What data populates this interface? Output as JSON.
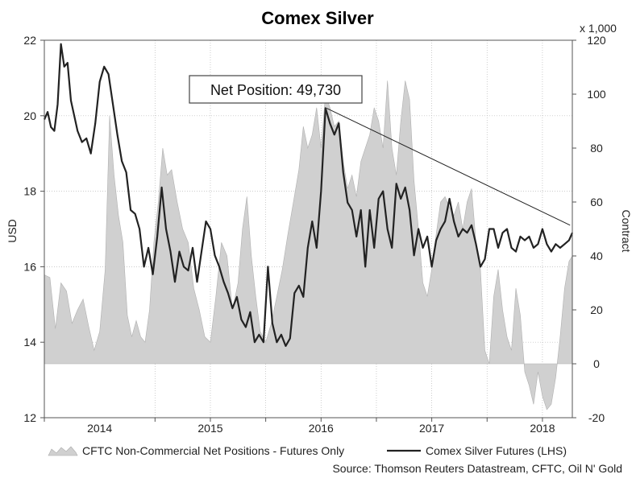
{
  "chart_data": {
    "type": "line",
    "title": "Comex Silver",
    "left_axis": {
      "label": "USD",
      "min": 12,
      "max": 22,
      "ticks": [
        12,
        14,
        16,
        18,
        20,
        22
      ]
    },
    "right_axis": {
      "label": "Contract",
      "unit_note": "x 1,000",
      "min": -20,
      "max": 120,
      "ticks": [
        -20,
        0,
        20,
        40,
        60,
        80,
        100,
        120
      ]
    },
    "x_axis": {
      "min": 2013.5,
      "max": 2018.27,
      "tick_labels": [
        {
          "label": "2014",
          "x": 2014.0
        },
        {
          "label": "2015",
          "x": 2015.0
        },
        {
          "label": "2016",
          "x": 2016.0
        },
        {
          "label": "2017",
          "x": 2017.0
        },
        {
          "label": "2018",
          "x": 2018.0
        }
      ],
      "year_boundaries": [
        2013.5,
        2014.5,
        2015.0,
        2015.5,
        2016.0,
        2016.5,
        2017.0,
        2017.5,
        2018.0
      ]
    },
    "series": [
      {
        "name": "CFTC Non-Commercial Net Positions - Futures Only",
        "type": "area",
        "axis": "right",
        "color": "#d0d0d0",
        "points": [
          [
            2013.5,
            33
          ],
          [
            2013.55,
            32
          ],
          [
            2013.6,
            13
          ],
          [
            2013.65,
            30
          ],
          [
            2013.7,
            27
          ],
          [
            2013.75,
            15
          ],
          [
            2013.8,
            20
          ],
          [
            2013.85,
            24
          ],
          [
            2013.9,
            14
          ],
          [
            2013.95,
            5
          ],
          [
            2014.0,
            12
          ],
          [
            2014.05,
            35
          ],
          [
            2014.09,
            92
          ],
          [
            2014.13,
            70
          ],
          [
            2014.17,
            55
          ],
          [
            2014.21,
            45
          ],
          [
            2014.25,
            18
          ],
          [
            2014.29,
            10
          ],
          [
            2014.33,
            16
          ],
          [
            2014.37,
            10
          ],
          [
            2014.41,
            8
          ],
          [
            2014.45,
            20
          ],
          [
            2014.49,
            45
          ],
          [
            2014.53,
            60
          ],
          [
            2014.57,
            80
          ],
          [
            2014.61,
            70
          ],
          [
            2014.65,
            72
          ],
          [
            2014.7,
            60
          ],
          [
            2014.75,
            50
          ],
          [
            2014.8,
            45
          ],
          [
            2014.85,
            28
          ],
          [
            2014.9,
            20
          ],
          [
            2014.95,
            10
          ],
          [
            2015.0,
            8
          ],
          [
            2015.05,
            25
          ],
          [
            2015.1,
            45
          ],
          [
            2015.15,
            40
          ],
          [
            2015.2,
            20
          ],
          [
            2015.25,
            30
          ],
          [
            2015.29,
            50
          ],
          [
            2015.33,
            62
          ],
          [
            2015.37,
            40
          ],
          [
            2015.41,
            25
          ],
          [
            2015.45,
            12
          ],
          [
            2015.5,
            8
          ],
          [
            2015.55,
            15
          ],
          [
            2015.6,
            25
          ],
          [
            2015.65,
            35
          ],
          [
            2015.7,
            48
          ],
          [
            2015.75,
            60
          ],
          [
            2015.8,
            72
          ],
          [
            2015.84,
            88
          ],
          [
            2015.88,
            80
          ],
          [
            2015.92,
            85
          ],
          [
            2015.96,
            95
          ],
          [
            2016.0,
            80
          ],
          [
            2016.04,
            100
          ],
          [
            2016.08,
            95
          ],
          [
            2016.12,
            88
          ],
          [
            2016.16,
            90
          ],
          [
            2016.2,
            75
          ],
          [
            2016.24,
            65
          ],
          [
            2016.28,
            70
          ],
          [
            2016.32,
            62
          ],
          [
            2016.36,
            75
          ],
          [
            2016.4,
            80
          ],
          [
            2016.44,
            85
          ],
          [
            2016.48,
            95
          ],
          [
            2016.52,
            90
          ],
          [
            2016.56,
            80
          ],
          [
            2016.6,
            105
          ],
          [
            2016.64,
            80
          ],
          [
            2016.68,
            70
          ],
          [
            2016.72,
            90
          ],
          [
            2016.76,
            105
          ],
          [
            2016.8,
            98
          ],
          [
            2016.84,
            68
          ],
          [
            2016.88,
            50
          ],
          [
            2016.92,
            30
          ],
          [
            2016.96,
            25
          ],
          [
            2017.0,
            35
          ],
          [
            2017.04,
            48
          ],
          [
            2017.08,
            60
          ],
          [
            2017.12,
            62
          ],
          [
            2017.16,
            58
          ],
          [
            2017.2,
            55
          ],
          [
            2017.24,
            60
          ],
          [
            2017.28,
            50
          ],
          [
            2017.32,
            60
          ],
          [
            2017.36,
            65
          ],
          [
            2017.4,
            45
          ],
          [
            2017.44,
            35
          ],
          [
            2017.48,
            5
          ],
          [
            2017.52,
            0
          ],
          [
            2017.56,
            25
          ],
          [
            2017.6,
            35
          ],
          [
            2017.64,
            20
          ],
          [
            2017.68,
            10
          ],
          [
            2017.72,
            5
          ],
          [
            2017.76,
            28
          ],
          [
            2017.8,
            18
          ],
          [
            2017.84,
            -3
          ],
          [
            2017.88,
            -8
          ],
          [
            2017.92,
            -15
          ],
          [
            2017.96,
            -3
          ],
          [
            2018.0,
            -12
          ],
          [
            2018.04,
            -17
          ],
          [
            2018.08,
            -15
          ],
          [
            2018.12,
            -5
          ],
          [
            2018.16,
            10
          ],
          [
            2018.2,
            28
          ],
          [
            2018.24,
            38
          ],
          [
            2018.27,
            40
          ]
        ]
      },
      {
        "name": "Comex Silver Futures (LHS)",
        "type": "line",
        "axis": "left",
        "color": "#222222",
        "points": [
          [
            2013.5,
            19.9
          ],
          [
            2013.53,
            20.1
          ],
          [
            2013.56,
            19.7
          ],
          [
            2013.59,
            19.6
          ],
          [
            2013.62,
            20.3
          ],
          [
            2013.65,
            21.9
          ],
          [
            2013.68,
            21.3
          ],
          [
            2013.71,
            21.4
          ],
          [
            2013.74,
            20.4
          ],
          [
            2013.77,
            20.0
          ],
          [
            2013.8,
            19.6
          ],
          [
            2013.84,
            19.3
          ],
          [
            2013.88,
            19.4
          ],
          [
            2013.92,
            19.0
          ],
          [
            2013.96,
            19.8
          ],
          [
            2014.0,
            20.9
          ],
          [
            2014.04,
            21.3
          ],
          [
            2014.08,
            21.1
          ],
          [
            2014.12,
            20.3
          ],
          [
            2014.16,
            19.5
          ],
          [
            2014.2,
            18.8
          ],
          [
            2014.24,
            18.5
          ],
          [
            2014.28,
            17.5
          ],
          [
            2014.32,
            17.4
          ],
          [
            2014.36,
            17.0
          ],
          [
            2014.4,
            16.0
          ],
          [
            2014.44,
            16.5
          ],
          [
            2014.48,
            15.8
          ],
          [
            2014.52,
            16.8
          ],
          [
            2014.56,
            18.1
          ],
          [
            2014.6,
            17.0
          ],
          [
            2014.64,
            16.4
          ],
          [
            2014.68,
            15.6
          ],
          [
            2014.72,
            16.4
          ],
          [
            2014.76,
            16.0
          ],
          [
            2014.8,
            15.9
          ],
          [
            2014.84,
            16.5
          ],
          [
            2014.88,
            15.6
          ],
          [
            2014.92,
            16.4
          ],
          [
            2014.96,
            17.2
          ],
          [
            2015.0,
            17.0
          ],
          [
            2015.04,
            16.3
          ],
          [
            2015.08,
            16.0
          ],
          [
            2015.12,
            15.6
          ],
          [
            2015.16,
            15.3
          ],
          [
            2015.2,
            14.9
          ],
          [
            2015.24,
            15.2
          ],
          [
            2015.28,
            14.6
          ],
          [
            2015.32,
            14.4
          ],
          [
            2015.36,
            14.8
          ],
          [
            2015.4,
            14.0
          ],
          [
            2015.44,
            14.2
          ],
          [
            2015.48,
            14.0
          ],
          [
            2015.52,
            16.0
          ],
          [
            2015.56,
            14.5
          ],
          [
            2015.6,
            14.0
          ],
          [
            2015.64,
            14.2
          ],
          [
            2015.68,
            13.9
          ],
          [
            2015.72,
            14.1
          ],
          [
            2015.76,
            15.3
          ],
          [
            2015.8,
            15.5
          ],
          [
            2015.84,
            15.2
          ],
          [
            2015.88,
            16.5
          ],
          [
            2015.92,
            17.2
          ],
          [
            2015.96,
            16.5
          ],
          [
            2016.0,
            18.0
          ],
          [
            2016.04,
            20.2
          ],
          [
            2016.08,
            19.8
          ],
          [
            2016.12,
            19.5
          ],
          [
            2016.16,
            19.8
          ],
          [
            2016.2,
            18.5
          ],
          [
            2016.24,
            17.7
          ],
          [
            2016.28,
            17.5
          ],
          [
            2016.32,
            16.8
          ],
          [
            2016.36,
            17.5
          ],
          [
            2016.4,
            16.0
          ],
          [
            2016.44,
            17.5
          ],
          [
            2016.48,
            16.5
          ],
          [
            2016.52,
            17.8
          ],
          [
            2016.56,
            18.0
          ],
          [
            2016.6,
            17.0
          ],
          [
            2016.64,
            16.5
          ],
          [
            2016.68,
            18.2
          ],
          [
            2016.72,
            17.8
          ],
          [
            2016.76,
            18.1
          ],
          [
            2016.8,
            17.5
          ],
          [
            2016.84,
            16.3
          ],
          [
            2016.88,
            17.0
          ],
          [
            2016.92,
            16.5
          ],
          [
            2016.96,
            16.8
          ],
          [
            2017.0,
            16.0
          ],
          [
            2017.04,
            16.7
          ],
          [
            2017.08,
            17.0
          ],
          [
            2017.12,
            17.2
          ],
          [
            2017.16,
            17.8
          ],
          [
            2017.2,
            17.2
          ],
          [
            2017.24,
            16.8
          ],
          [
            2017.28,
            17.0
          ],
          [
            2017.32,
            16.9
          ],
          [
            2017.36,
            17.1
          ],
          [
            2017.4,
            16.6
          ],
          [
            2017.44,
            16.0
          ],
          [
            2017.48,
            16.2
          ],
          [
            2017.52,
            17.0
          ],
          [
            2017.56,
            17.0
          ],
          [
            2017.6,
            16.5
          ],
          [
            2017.64,
            16.9
          ],
          [
            2017.68,
            17.0
          ],
          [
            2017.72,
            16.5
          ],
          [
            2017.76,
            16.4
          ],
          [
            2017.8,
            16.8
          ],
          [
            2017.84,
            16.7
          ],
          [
            2017.88,
            16.8
          ],
          [
            2017.92,
            16.5
          ],
          [
            2017.96,
            16.6
          ],
          [
            2018.0,
            17.0
          ],
          [
            2018.04,
            16.6
          ],
          [
            2018.08,
            16.4
          ],
          [
            2018.12,
            16.6
          ],
          [
            2018.16,
            16.5
          ],
          [
            2018.2,
            16.6
          ],
          [
            2018.24,
            16.7
          ],
          [
            2018.27,
            16.9
          ]
        ]
      }
    ],
    "annotation": {
      "text": "Net Position: 49,730",
      "line_from": [
        2016.05,
        20.2
      ],
      "line_to": [
        2018.25,
        17.1
      ]
    },
    "legend": {
      "placement": "bottom"
    },
    "source": "Source: Thomson Reuters Datastream, CFTC, Oil N' Gold"
  }
}
